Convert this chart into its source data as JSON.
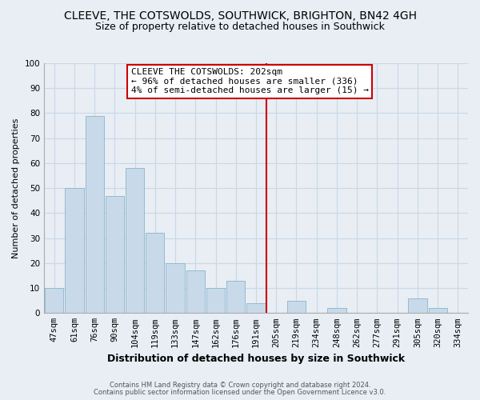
{
  "title": "CLEEVE, THE COTSWOLDS, SOUTHWICK, BRIGHTON, BN42 4GH",
  "subtitle": "Size of property relative to detached houses in Southwick",
  "xlabel": "Distribution of detached houses by size in Southwick",
  "ylabel": "Number of detached properties",
  "categories": [
    "47sqm",
    "61sqm",
    "76sqm",
    "90sqm",
    "104sqm",
    "119sqm",
    "133sqm",
    "147sqm",
    "162sqm",
    "176sqm",
    "191sqm",
    "205sqm",
    "219sqm",
    "234sqm",
    "248sqm",
    "262sqm",
    "277sqm",
    "291sqm",
    "305sqm",
    "320sqm",
    "334sqm"
  ],
  "values": [
    10,
    50,
    79,
    47,
    58,
    32,
    20,
    17,
    10,
    13,
    4,
    0,
    5,
    0,
    2,
    0,
    0,
    0,
    6,
    2,
    0
  ],
  "bar_color": "#c8daea",
  "bar_edge_color": "#8ab4cc",
  "vline_index": 11,
  "vline_color": "#cc0000",
  "annotation_title": "CLEEVE THE COTSWOLDS: 202sqm",
  "annotation_line1": "← 96% of detached houses are smaller (336)",
  "annotation_line2": "4% of semi-detached houses are larger (15) →",
  "annotation_box_facecolor": "#ffffff",
  "annotation_box_edgecolor": "#cc0000",
  "ylim": [
    0,
    100
  ],
  "yticks": [
    0,
    10,
    20,
    30,
    40,
    50,
    60,
    70,
    80,
    90,
    100
  ],
  "footnote1": "Contains HM Land Registry data © Crown copyright and database right 2024.",
  "footnote2": "Contains public sector information licensed under the Open Government Licence v3.0.",
  "background_color": "#e8eef4",
  "grid_color": "#c8d8e8",
  "title_fontsize": 10,
  "subtitle_fontsize": 9,
  "ylabel_fontsize": 8,
  "xlabel_fontsize": 9,
  "tick_fontsize": 7.5,
  "footnote_fontsize": 6,
  "annot_fontsize": 8
}
